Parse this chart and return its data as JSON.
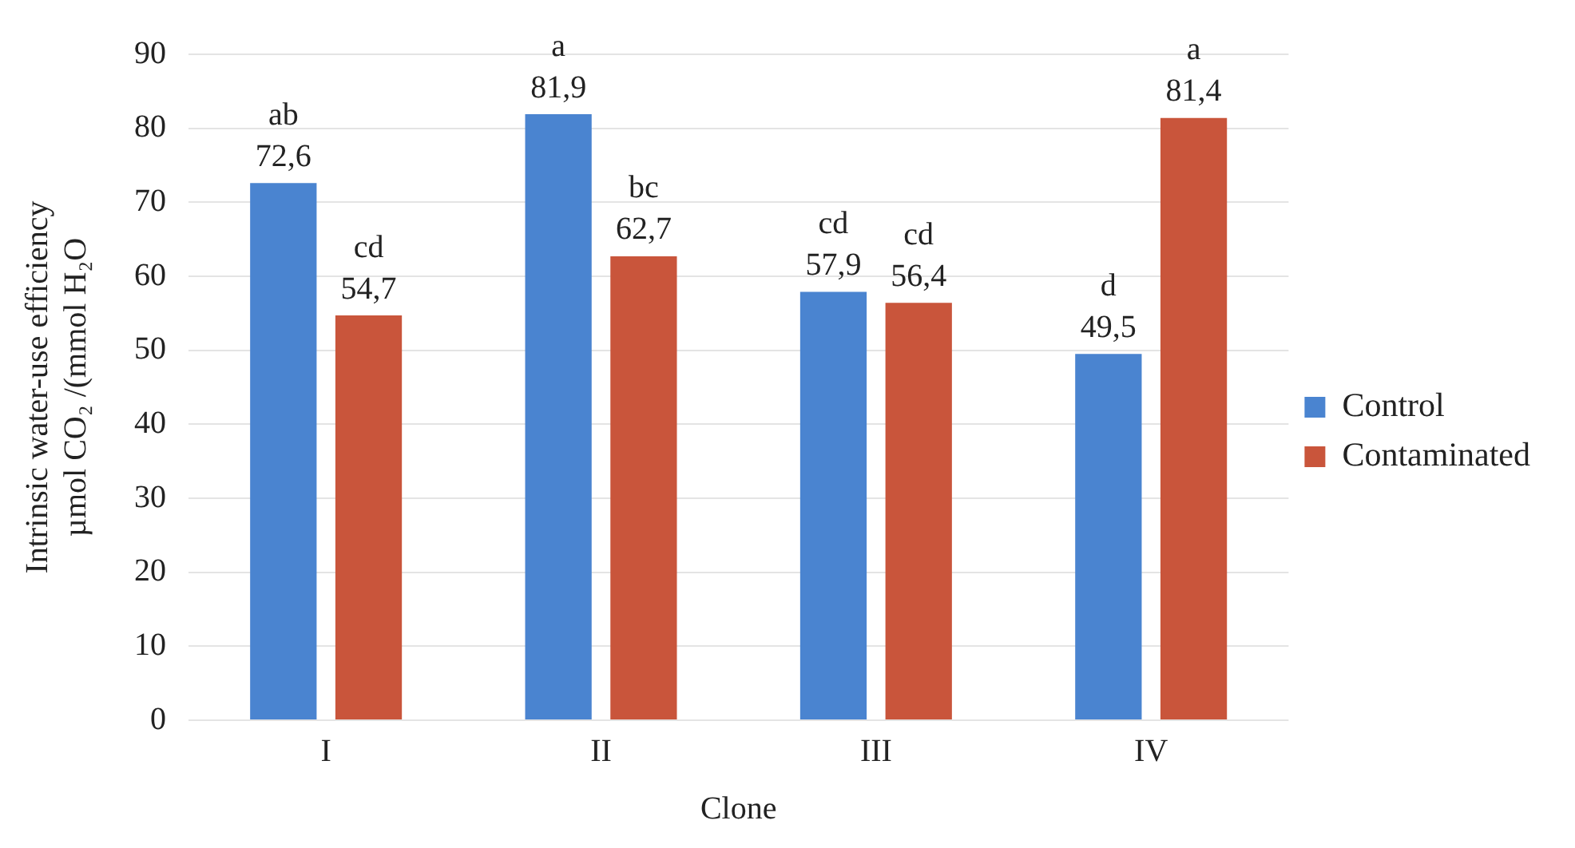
{
  "chart_data": {
    "type": "bar",
    "xlabel": "Clone",
    "ylabel": "Intrinsic water-use efficiency µmol CO₂ /(mmol H₂O",
    "categories": [
      "I",
      "II",
      "III",
      "IV"
    ],
    "series": [
      {
        "name": "Control",
        "color": "#4a84d0",
        "values": [
          72.6,
          81.9,
          57.9,
          49.5
        ],
        "value_labels": [
          "72,6",
          "81,9",
          "57,9",
          "49,5"
        ]
      },
      {
        "name": "Contaminated",
        "color": "#c9553b",
        "values": [
          54.7,
          62.7,
          56.4,
          81.4
        ],
        "value_labels": [
          "54,7",
          "62,7",
          "56,4",
          "81,4"
        ]
      }
    ],
    "annotations": [
      "ab",
      "cd",
      "a",
      "bc",
      "cd",
      "cd",
      "d",
      "a"
    ],
    "ylim": [
      0,
      90
    ],
    "yticks": [
      0,
      10,
      20,
      30,
      40,
      50,
      60,
      70,
      80,
      90
    ],
    "grid": "y",
    "legend": "right"
  }
}
